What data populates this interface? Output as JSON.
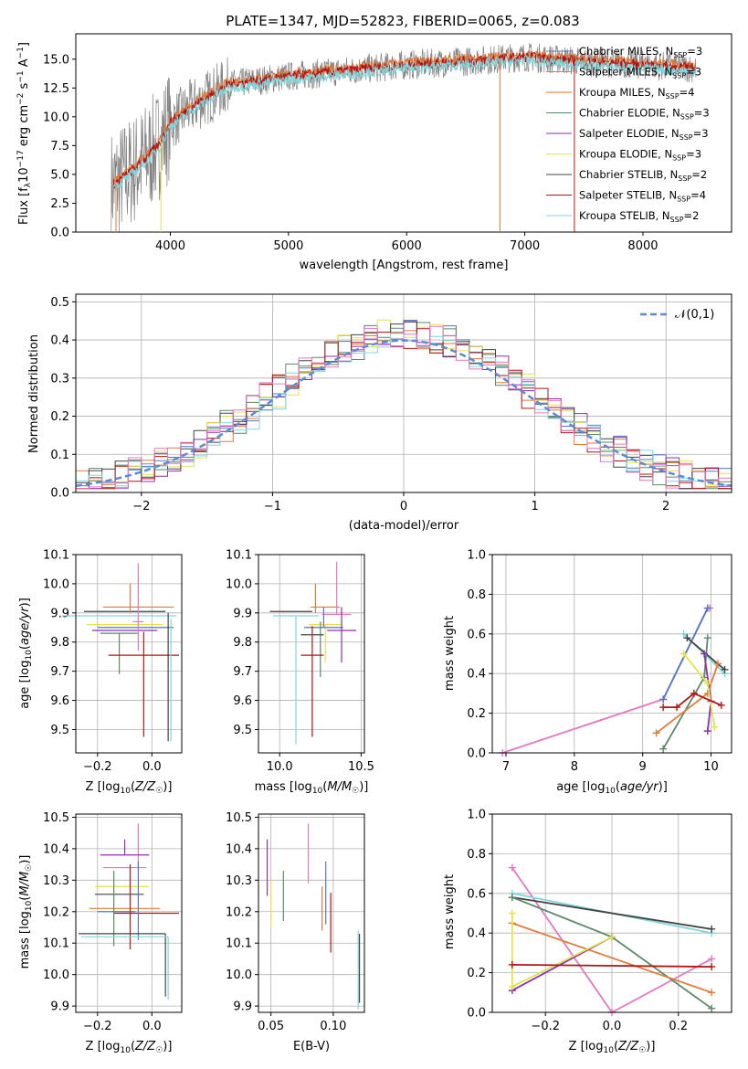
{
  "title": "PLATE=1347, MJD=52823, FIBERID=0065, z=0.083",
  "colors": {
    "Chabrier MILES": "#4e79c7",
    "Salpeter MILES": "#e07b39",
    "Kroupa MILES": "#e37222",
    "Chabrier ELODIE": "#5a8a68",
    "Salpeter ELODIE": "#8e2fb5",
    "Kroupa ELODIE": "#e3e34b",
    "Chabrier STELIB": "#444444",
    "Salpeter STELIB": "#b01616",
    "Kroupa STELIB": "#7fd6dc",
    "data": "#808080",
    "extra_pink": "#e377c2",
    "gauss": "#5b8ad6"
  },
  "chart_data": [
    {
      "id": "spectrum",
      "type": "line",
      "title": "PLATE=1347, MJD=52823, FIBERID=0065, z=0.083",
      "xlabel": "wavelength [Angstrom, rest frame]",
      "ylabel": "Flux [f_λ 10⁻¹⁷ erg cm⁻² s⁻¹ A⁻¹]",
      "xlim": [
        3200,
        8750
      ],
      "ylim": [
        0,
        17.2
      ],
      "xticks": [
        "4000",
        "5000",
        "6000",
        "7000",
        "8000"
      ],
      "yticks": [
        "0.0",
        "2.5",
        "5.0",
        "7.5",
        "10.0",
        "12.5",
        "15.0"
      ],
      "legend_position": "right",
      "legend": [
        "Chabrier MILES, N_SSP=3",
        "Salpeter MILES, N_SSP=3",
        "Kroupa MILES, N_SSP=4",
        "Chabrier ELODIE, N_SSP=3",
        "Salpeter ELODIE, N_SSP=3",
        "Kroupa ELODIE, N_SSP=3",
        "Chabrier STELIB, N_SSP=2",
        "Salpeter STELIB, N_SSP=4",
        "Kroupa STELIB, N_SSP=2"
      ],
      "data_curve_x": [
        3500,
        3700,
        3900,
        4000,
        4200,
        4500,
        5000,
        5500,
        6000,
        6500,
        7000,
        7500,
        8000,
        8500
      ],
      "data_curve_y": [
        4.0,
        5.5,
        7.5,
        9.5,
        11.0,
        12.8,
        13.5,
        14.0,
        14.5,
        14.8,
        15.2,
        14.8,
        14.5,
        14.2
      ]
    },
    {
      "id": "residuals",
      "type": "line",
      "xlabel": "(data-model)/error",
      "ylabel": "Normed distribution",
      "xlim": [
        -2.5,
        2.5
      ],
      "ylim": [
        0,
        0.52
      ],
      "xticks": [
        "−2",
        "−1",
        "0",
        "1",
        "2"
      ],
      "yticks": [
        "0.0",
        "0.1",
        "0.2",
        "0.3",
        "0.4",
        "0.5"
      ],
      "gauss_label": "𝒩(0,1)",
      "legend_position": "top-right"
    },
    {
      "id": "age_vs_Z",
      "type": "scatter",
      "xlabel": "Z [log₁₀(Z/Z☉)]",
      "ylabel": "age  [log₁₀(age/yr)]",
      "xlim": [
        -0.28,
        0.11
      ],
      "ylim": [
        9.42,
        10.1
      ],
      "xticks": [
        "−0.2",
        "0.0"
      ],
      "yticks": [
        "9.5",
        "9.6",
        "9.7",
        "9.8",
        "9.9",
        "10.0",
        "10.1"
      ]
    },
    {
      "id": "age_vs_mass",
      "type": "scatter",
      "xlabel": "mass [log₁₀(M/M☉)]",
      "xlim": [
        9.87,
        10.52
      ],
      "ylim": [
        9.42,
        10.1
      ],
      "xticks": [
        "10.0",
        "10.5"
      ],
      "yticks": [
        "9.5",
        "9.6",
        "9.7",
        "9.8",
        "9.9",
        "10.0",
        "10.1"
      ]
    },
    {
      "id": "mw_vs_age",
      "type": "line",
      "xlabel": "age  [log₁₀(age/yr)]",
      "ylabel": "mass weight",
      "xlim": [
        6.8,
        10.3
      ],
      "ylim": [
        0,
        1.0
      ],
      "xticks": [
        "7",
        "8",
        "9",
        "10"
      ],
      "yticks": [
        "0.0",
        "0.2",
        "0.4",
        "0.6",
        "0.8",
        "1.0"
      ],
      "series": [
        {
          "color": "pink",
          "x": [
            6.95,
            9.3,
            9.95,
            9.98
          ],
          "y": [
            0.0,
            0.27,
            0.73,
            0.73
          ]
        },
        {
          "color": "blue",
          "x": [
            9.3,
            9.95
          ],
          "y": [
            0.27,
            0.73
          ]
        },
        {
          "color": "cyan",
          "x": [
            9.6,
            10.2
          ],
          "y": [
            0.6,
            0.4
          ]
        },
        {
          "color": "dark",
          "x": [
            9.65,
            10.2
          ],
          "y": [
            0.58,
            0.42
          ]
        },
        {
          "color": "green",
          "x": [
            9.3,
            9.9,
            9.95
          ],
          "y": [
            0.02,
            0.38,
            0.58
          ]
        },
        {
          "color": "orange",
          "x": [
            9.2,
            9.95,
            10.1
          ],
          "y": [
            0.1,
            0.3,
            0.45
          ]
        },
        {
          "color": "purple",
          "x": [
            9.95,
            10.0,
            9.9
          ],
          "y": [
            0.11,
            0.26,
            0.5
          ]
        },
        {
          "color": "yellow",
          "x": [
            9.6,
            9.95,
            10.05
          ],
          "y": [
            0.5,
            0.35,
            0.13
          ]
        },
        {
          "color": "red",
          "x": [
            9.3,
            9.5,
            9.75,
            10.15
          ],
          "y": [
            0.23,
            0.23,
            0.3,
            0.24
          ]
        }
      ]
    },
    {
      "id": "mass_vs_Z",
      "type": "scatter",
      "xlabel": "Z [log₁₀(Z/Z☉)]",
      "ylabel": "mass [log₁₀(M/M☉)]",
      "xlim": [
        -0.28,
        0.11
      ],
      "ylim": [
        9.88,
        10.51
      ],
      "xticks": [
        "−0.2",
        "0.0"
      ],
      "yticks": [
        "9.9",
        "10.0",
        "10.1",
        "10.2",
        "10.3",
        "10.4",
        "10.5"
      ]
    },
    {
      "id": "mass_vs_ebv",
      "type": "scatter",
      "xlabel": "E(B-V)",
      "xlim": [
        0.04,
        0.125
      ],
      "ylim": [
        9.88,
        10.51
      ],
      "xticks": [
        "0.05",
        "0.10"
      ],
      "yticks": [
        "9.9",
        "10.0",
        "10.1",
        "10.2",
        "10.3",
        "10.4",
        "10.5"
      ]
    },
    {
      "id": "mw_vs_Z",
      "type": "line",
      "xlabel": "Z [log₁₀(Z/Z☉)]",
      "ylabel": "mass weight",
      "xlim": [
        -0.36,
        0.36
      ],
      "ylim": [
        0,
        1.0
      ],
      "xticks": [
        "−0.2",
        "0.0",
        "0.2"
      ],
      "yticks": [
        "0.0",
        "0.2",
        "0.4",
        "0.6",
        "0.8",
        "1.0"
      ],
      "series": [
        {
          "color": "pink",
          "x": [
            -0.3,
            0.0,
            0.3
          ],
          "y": [
            0.73,
            0.0,
            0.27
          ]
        },
        {
          "color": "cyan",
          "x": [
            -0.3,
            0.3
          ],
          "y": [
            0.6,
            0.4
          ]
        },
        {
          "color": "dark",
          "x": [
            -0.3,
            0.3
          ],
          "y": [
            0.58,
            0.42
          ]
        },
        {
          "color": "green",
          "x": [
            -0.3,
            0.0,
            0.3
          ],
          "y": [
            0.58,
            0.38,
            0.02
          ]
        },
        {
          "color": "orange",
          "x": [
            -0.3,
            0.3
          ],
          "y": [
            0.45,
            0.1
          ]
        },
        {
          "color": "purple",
          "x": [
            -0.3,
            0.0
          ],
          "y": [
            0.11,
            0.38
          ]
        },
        {
          "color": "yellow",
          "x": [
            -0.3,
            -0.3,
            0.0
          ],
          "y": [
            0.5,
            0.13,
            0.38
          ]
        },
        {
          "color": "red",
          "x": [
            -0.3,
            0.3
          ],
          "y": [
            0.24,
            0.23
          ]
        }
      ]
    }
  ]
}
